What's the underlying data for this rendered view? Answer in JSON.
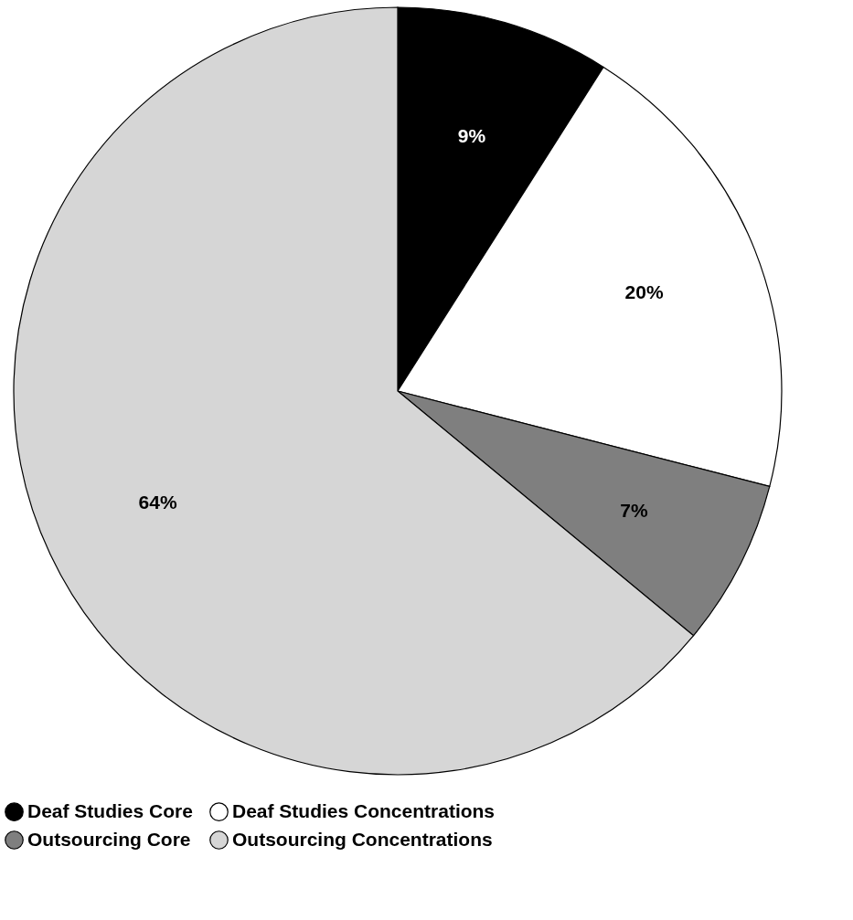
{
  "chart_data": {
    "type": "pie",
    "categories": [
      "Deaf Studies Core",
      "Deaf Studies Concentrations",
      "Outsourcing Core",
      "Outsourcing Concentrations"
    ],
    "values": [
      9,
      20,
      7,
      64
    ],
    "colors": [
      "#000000",
      "#ffffff",
      "#7f7f7f",
      "#d6d6d6"
    ],
    "value_labels": [
      "9%",
      "20%",
      "7%",
      "64%"
    ],
    "legend": "bottom"
  }
}
